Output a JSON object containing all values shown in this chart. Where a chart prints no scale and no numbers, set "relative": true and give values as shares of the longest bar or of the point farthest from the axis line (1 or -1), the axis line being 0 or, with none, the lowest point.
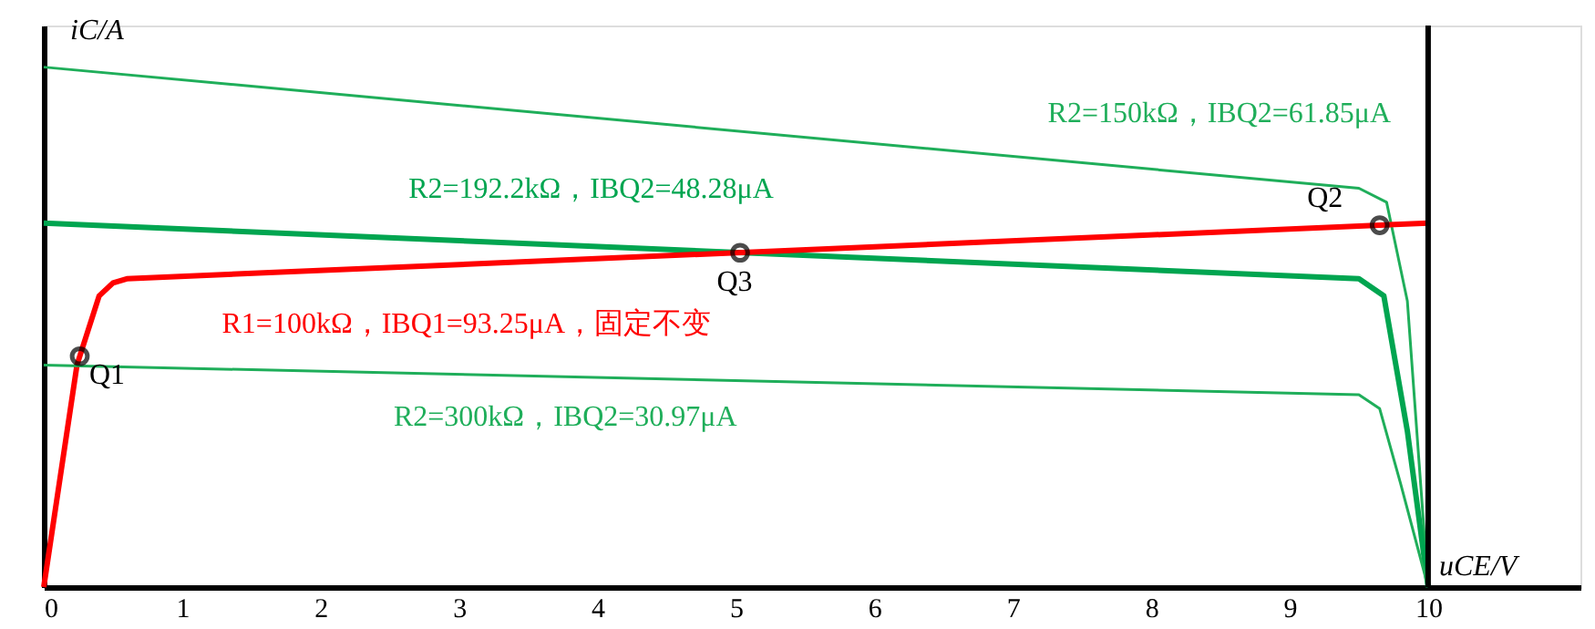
{
  "chart_data": {
    "type": "line",
    "relative": true,
    "xlabel": "uCE/V",
    "ylabel": "iC/A",
    "xlim": [
      0,
      11.1
    ],
    "xticks": [
      0,
      1,
      2,
      3,
      4,
      5,
      6,
      7,
      8,
      9,
      10
    ],
    "series": [
      {
        "color": "#1fae5a",
        "x": [
          0,
          9.5,
          9.7,
          9.85,
          10
        ],
        "values": [
          1.0,
          0.767,
          0.74,
          0.55,
          0
        ]
      },
      {
        "color": "#00a550",
        "x": [
          0,
          9.5,
          9.68,
          9.85,
          10
        ],
        "values": [
          0.7,
          0.593,
          0.56,
          0.3,
          0
        ]
      },
      {
        "color": "#ff0000",
        "x": [
          0,
          0.24,
          0.4,
          0.5,
          0.6,
          10
        ],
        "values": [
          0,
          0.427,
          0.56,
          0.585,
          0.593,
          0.7
        ]
      },
      {
        "color": "#1fae5a",
        "x": [
          0,
          9.5,
          9.65,
          9.8,
          10
        ],
        "values": [
          0.427,
          0.37,
          0.343,
          0.2,
          0
        ]
      },
      {
        "type": "scatter",
        "color": "#000000",
        "marker": "circle",
        "x": [
          0.26,
          5.03,
          9.65
        ],
        "values": [
          0.444,
          0.643,
          0.696
        ]
      }
    ],
    "ref_lines": [
      {
        "axis": "x",
        "value": 10,
        "color": "#000000"
      }
    ],
    "annotations": [
      {
        "text": "R2=150kΩ，IBQ2=61.85μA",
        "x": 7.57,
        "y": 0.814
      },
      {
        "text": "R2=192.2kΩ，IBQ2=48.28μA",
        "x": 4.48,
        "y": 0.65
      },
      {
        "text": "R1=100kΩ，IBQ1=93.25μA，固定不变",
        "x": 1.05,
        "y": 0.598
      },
      {
        "text": "R2=300kΩ，IBQ2=30.97μA",
        "x": 1.99,
        "y": 0.415
      },
      {
        "text": "Q1",
        "x": 0.26,
        "y": 0.444
      },
      {
        "text": "Q3",
        "x": 5.03,
        "y": 0.643
      },
      {
        "text": "Q2",
        "x": 9.65,
        "y": 0.696
      }
    ],
    "marker": "none",
    "line_style": "solid",
    "grid": false
  }
}
